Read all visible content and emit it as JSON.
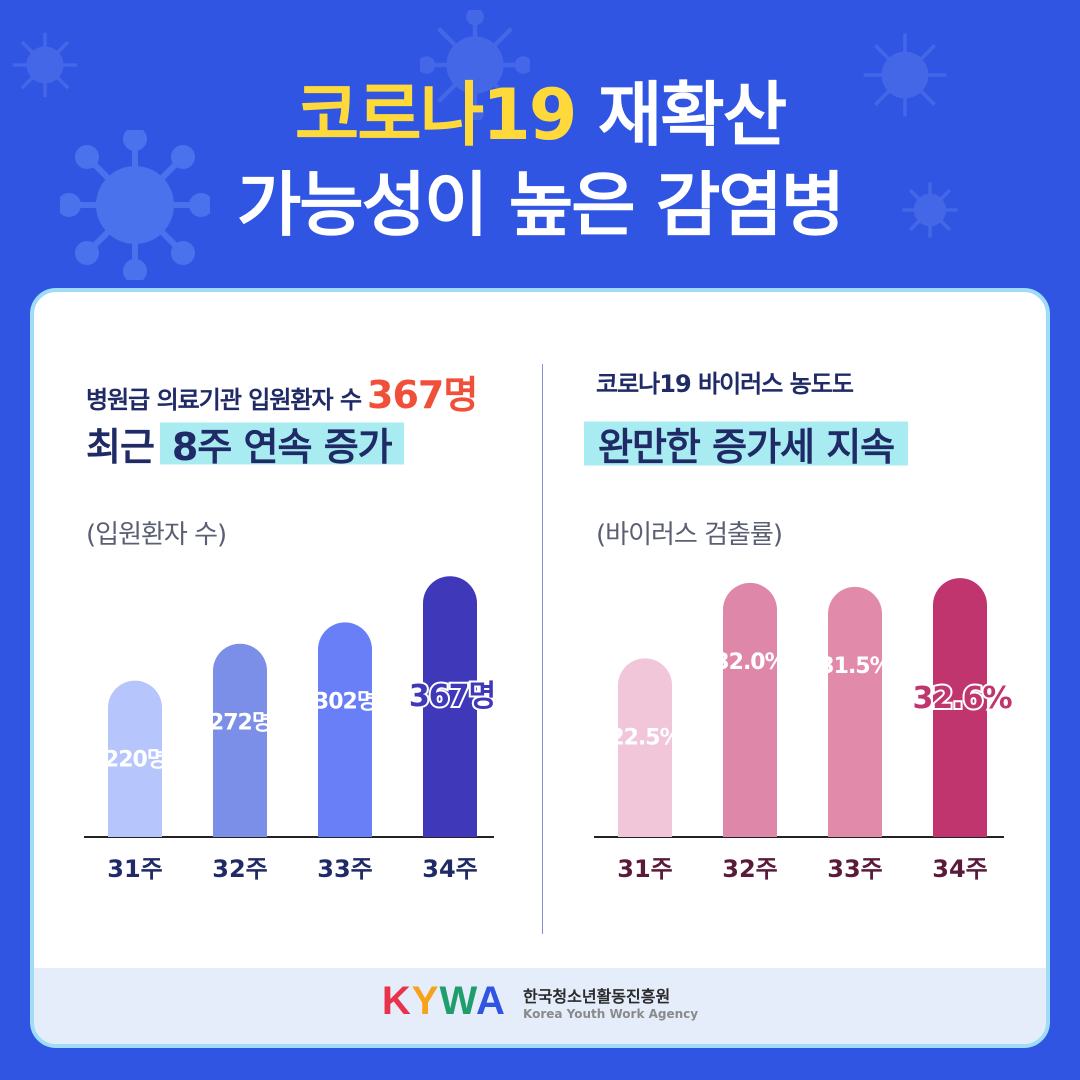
{
  "title": {
    "line1_highlight": "코로나19",
    "line1_rest": "재확산",
    "line2": "가능성이 높은 감염병"
  },
  "colors": {
    "background": "#2f55e2",
    "title_highlight": "#ffd93a",
    "accent_number": "#f0503a",
    "card_border": "#9fdcf7",
    "brush": "#a8ecf2"
  },
  "left_panel": {
    "subtitle": "병원급 의료기관 입원환자 수",
    "subtitle_number": "367명",
    "headline_prefix": "최근",
    "headline_highlight": "8주 연속 증가",
    "unit_label": "(입원환자 수)"
  },
  "right_panel": {
    "subtitle": "코로나19 바이러스 농도도",
    "headline_highlight": "완만한 증가세 지속",
    "unit_label": "(바이러스 검출률)"
  },
  "chart_data": [
    {
      "type": "bar",
      "categories": [
        "31주",
        "32주",
        "33주",
        "34주"
      ],
      "values": [
        220,
        272,
        302,
        367
      ],
      "data_labels": [
        "220명",
        "272명",
        "302명",
        "367명"
      ],
      "bar_colors": [
        "#b6c5fb",
        "#7b8fe8",
        "#687ff7",
        "#3f38b8"
      ],
      "label_colors": [
        "#ffffff",
        "#ffffff",
        "#ffffff",
        "#3f38b8"
      ],
      "tick_color": "#1f2a66",
      "ylim": [
        0,
        380
      ],
      "ylabel": "(입원환자 수)"
    },
    {
      "type": "bar",
      "categories": [
        "31주",
        "32주",
        "33주",
        "34주"
      ],
      "values": [
        22.5,
        32.0,
        31.5,
        32.6
      ],
      "data_labels": [
        "22.5%",
        "32.0%",
        "31.5%",
        "32.6%"
      ],
      "bar_colors": [
        "#f1c6d9",
        "#de87a8",
        "#e28aa9",
        "#c0356e"
      ],
      "label_colors": [
        "#ffffff",
        "#ffffff",
        "#ffffff",
        "#c0356e"
      ],
      "tick_color": "#5a1a3a",
      "ylim": [
        0,
        34
      ],
      "ylabel": "(바이러스 검출률)"
    }
  ],
  "footer": {
    "logo_letters": [
      "K",
      "Y",
      "W",
      "A"
    ],
    "logo_colors": [
      "#e8334a",
      "#f7a21b",
      "#1f9e6c",
      "#2f55e2"
    ],
    "org_name_ko": "한국청소년활동진흥원",
    "org_name_en": "Korea Youth Work Agency"
  }
}
